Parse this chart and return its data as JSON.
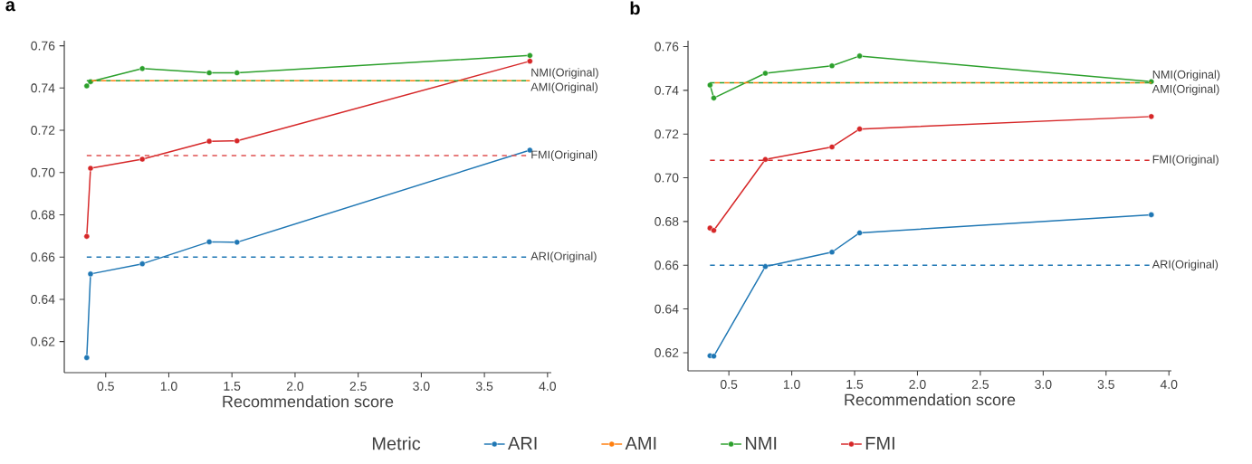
{
  "chart_data": [
    {
      "type": "line",
      "title": "a",
      "xlabel": "Recommendation score",
      "legend_title": "Metric",
      "legend": "bottom",
      "marker": "circle",
      "line_style": "solid",
      "xlim": [
        0.172,
        4.03
      ],
      "ylim": [
        0.6053,
        0.7624
      ],
      "xticks": [
        0.5,
        {
          "value": 1,
          "label": "1.0"
        },
        1.5,
        {
          "value": 2,
          "label": "2.0"
        },
        2.5,
        {
          "value": 3,
          "label": "3.0"
        },
        3.5,
        {
          "value": 4,
          "label": "4.0"
        }
      ],
      "yticks": [
        0.62,
        0.64,
        0.66,
        0.68,
        {
          "value": 0.7,
          "label": "0.70"
        },
        0.72,
        0.74,
        0.76
      ],
      "x": [
        0.35,
        0.38,
        0.79,
        1.32,
        1.54,
        3.86
      ],
      "series": [
        {
          "name": "ARI",
          "color": "#1f77b4",
          "values": [
            0.6124,
            0.652,
            0.6568,
            0.6672,
            0.667,
            0.7106
          ]
        },
        {
          "name": "AMI",
          "color": "#ff7f0e",
          "values": [
            null,
            null,
            null,
            null,
            null,
            null
          ]
        },
        {
          "name": "NMI",
          "color": "#2ca02c",
          "values": [
            0.741,
            0.743,
            0.7492,
            0.7472,
            0.7472,
            0.7554
          ]
        },
        {
          "name": "FMI",
          "color": "#d62728",
          "values": [
            0.6698,
            0.702,
            0.7063,
            0.7148,
            0.715,
            0.7527
          ]
        }
      ],
      "ref_lines": [
        {
          "axis": "y",
          "value": 0.66,
          "label": "ARI(Original)",
          "color": "#1f77b4",
          "line_style": "dashed"
        },
        {
          "axis": "y",
          "value": 0.7435,
          "label": "NMI(Original)",
          "color": "#2ca02c",
          "line_style": "dashed"
        },
        {
          "axis": "y",
          "value": 0.7435,
          "label": "AMI(Original)",
          "color": "#ff7f0e",
          "line_style": "dashed"
        },
        {
          "axis": "y",
          "value": 0.708,
          "label": "FMI(Original)",
          "color": "#e05252",
          "line_style": "dashed"
        }
      ]
    },
    {
      "type": "line",
      "title": "b",
      "xlabel": "Recommendation score",
      "marker": "circle",
      "line_style": "solid",
      "xlim": [
        0.175,
        4.02
      ],
      "ylim": [
        0.6117,
        0.7627
      ],
      "xticks": [
        0.5,
        {
          "value": 1,
          "label": "1.0"
        },
        1.5,
        {
          "value": 2,
          "label": "2.0"
        },
        2.5,
        {
          "value": 3,
          "label": "3.0"
        },
        3.5,
        {
          "value": 4,
          "label": "4.0"
        }
      ],
      "yticks": [
        0.62,
        0.64,
        0.66,
        0.68,
        {
          "value": 0.7,
          "label": "0.70"
        },
        0.72,
        0.74,
        0.76
      ],
      "x": [
        0.35,
        0.38,
        0.79,
        1.32,
        1.54,
        3.86
      ],
      "series": [
        {
          "color": "#1f77b4",
          "values": [
            0.6186,
            0.6184,
            0.6594,
            0.666,
            0.6748,
            0.6831
          ]
        },
        {
          "color": "#2ca02c",
          "values": [
            0.7424,
            0.7365,
            0.7478,
            0.7512,
            0.7557,
            0.744
          ]
        },
        {
          "color": "#d62728",
          "values": [
            0.677,
            0.6759,
            0.7084,
            0.7141,
            0.7223,
            0.728
          ]
        }
      ],
      "ref_lines": [
        {
          "axis": "y",
          "value": 0.66,
          "label": "ARI(Original)",
          "color": "#1f77b4",
          "line_style": "dashed"
        },
        {
          "axis": "y",
          "value": 0.7435,
          "label": "NMI(Original)",
          "color": "#2ca02c",
          "line_style": "dashed"
        },
        {
          "axis": "y",
          "value": 0.7435,
          "label": "AMI(Original)",
          "color": "#ff7f0e",
          "line_style": "dashed"
        },
        {
          "axis": "y",
          "value": 0.708,
          "label": "FMI(Original)",
          "color": "#d62728",
          "line_style": "dashed"
        }
      ]
    }
  ]
}
